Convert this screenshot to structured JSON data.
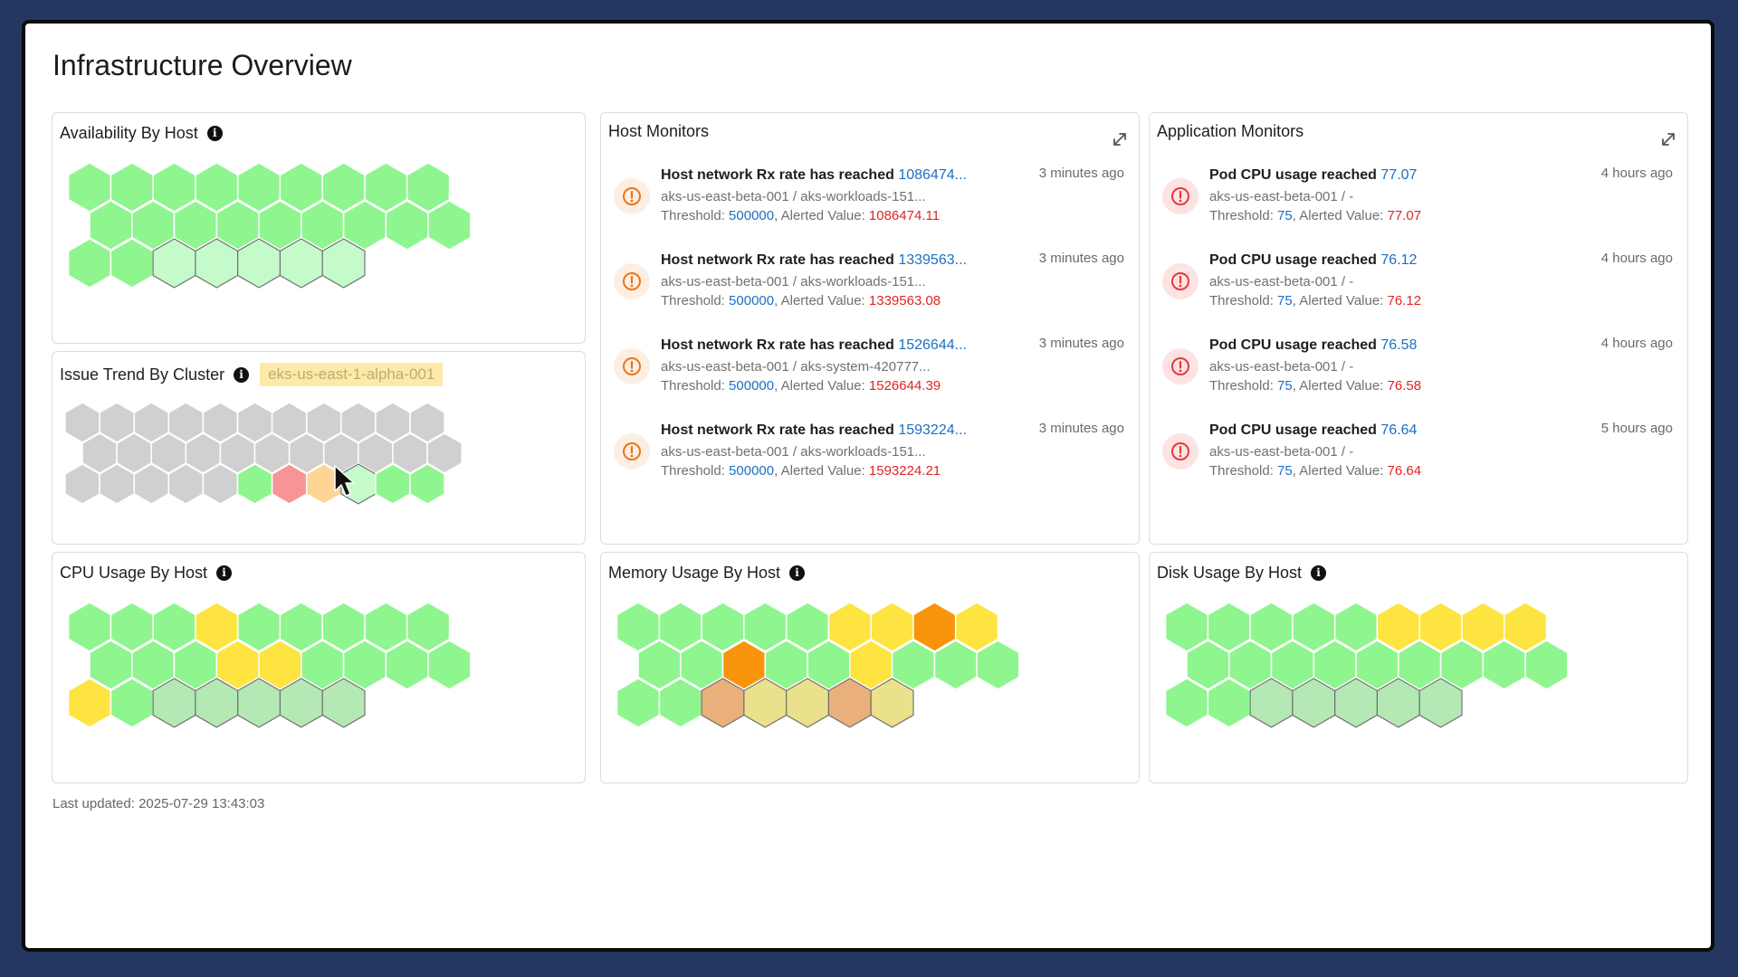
{
  "page": {
    "title": "Infrastructure Overview",
    "last_updated": "Last updated: 2025-07-29 13:43:03"
  },
  "panels": {
    "availability": {
      "title": "Availability By Host"
    },
    "issue_trend": {
      "title": "Issue Trend By Cluster",
      "cluster": "eks-us-east-1-alpha-001"
    },
    "cpu": {
      "title": "CPU Usage By Host"
    },
    "memory": {
      "title": "Memory Usage By Host"
    },
    "disk": {
      "title": "Disk Usage By Host"
    }
  },
  "colors": {
    "green": "#8ff58f",
    "light_green": "#c5facb",
    "gray": "#d0d0d0",
    "red": "#f79596",
    "peach": "#fed595",
    "yellow": "#fde440",
    "orange": "#f9940d",
    "muted_green": "#b4e8b4",
    "muted_orange": "#eab07c",
    "muted_yellow": "#ebe08b"
  },
  "hex_grids": {
    "availability": {
      "rows": [
        [
          "green",
          "green",
          "green",
          "green",
          "green",
          "green",
          "green",
          "green",
          "green"
        ],
        [
          "green",
          "green",
          "green",
          "green",
          "green",
          "green",
          "green",
          "green",
          "green"
        ],
        [
          "green",
          "green",
          "light_green",
          "light_green",
          "light_green",
          "light_green",
          "light_green"
        ]
      ]
    },
    "issue_trend": {
      "rows": [
        [
          "gray",
          "gray",
          "gray",
          "gray",
          "gray",
          "gray",
          "gray",
          "gray",
          "gray",
          "gray",
          "gray"
        ],
        [
          "gray",
          "gray",
          "gray",
          "gray",
          "gray",
          "gray",
          "gray",
          "gray",
          "gray",
          "gray",
          "gray"
        ],
        [
          "gray",
          "gray",
          "gray",
          "gray",
          "gray",
          "green",
          "red",
          "peach",
          "light_green",
          "green",
          "green"
        ]
      ]
    },
    "cpu": {
      "rows": [
        [
          "green",
          "green",
          "green",
          "yellow",
          "green",
          "green",
          "green",
          "green",
          "green"
        ],
        [
          "green",
          "green",
          "green",
          "yellow",
          "yellow",
          "green",
          "green",
          "green",
          "green"
        ],
        [
          "yellow",
          "green",
          "muted_green",
          "muted_green",
          "muted_green",
          "muted_green",
          "muted_green"
        ]
      ]
    },
    "memory": {
      "rows": [
        [
          "green",
          "green",
          "green",
          "green",
          "green",
          "yellow",
          "yellow",
          "orange",
          "yellow"
        ],
        [
          "green",
          "green",
          "orange",
          "green",
          "green",
          "yellow",
          "green",
          "green",
          "green"
        ],
        [
          "green",
          "green",
          "muted_orange",
          "muted_yellow",
          "muted_yellow",
          "muted_orange",
          "muted_yellow"
        ]
      ]
    },
    "disk": {
      "rows": [
        [
          "green",
          "green",
          "green",
          "green",
          "green",
          "yellow",
          "yellow",
          "yellow",
          "yellow"
        ],
        [
          "green",
          "green",
          "green",
          "green",
          "green",
          "green",
          "green",
          "green",
          "green"
        ],
        [
          "green",
          "green",
          "muted_green",
          "muted_green",
          "muted_green",
          "muted_green",
          "muted_green"
        ]
      ]
    }
  },
  "host_monitors": {
    "title": "Host Monitors",
    "items": [
      {
        "title": "Host network Rx rate has reached",
        "value": "1086474...",
        "subtitle": "aks-us-east-beta-001 / aks-workloads-151...",
        "threshold_label": "Threshold:",
        "threshold": "500000",
        "alerted_label": ", Alerted Value:",
        "alerted": "1086474.11",
        "time": "3 minutes ago"
      },
      {
        "title": "Host network Rx rate has reached",
        "value": "1339563...",
        "subtitle": "aks-us-east-beta-001 / aks-workloads-151...",
        "threshold_label": "Threshold:",
        "threshold": "500000",
        "alerted_label": ", Alerted Value:",
        "alerted": "1339563.08",
        "time": "3 minutes ago"
      },
      {
        "title": "Host network Rx rate has reached",
        "value": "1526644...",
        "subtitle": "aks-us-east-beta-001 / aks-system-420777...",
        "threshold_label": "Threshold:",
        "threshold": "500000",
        "alerted_label": ", Alerted Value:",
        "alerted": "1526644.39",
        "time": "3 minutes ago"
      },
      {
        "title": "Host network Rx rate has reached",
        "value": "1593224...",
        "subtitle": "aks-us-east-beta-001 / aks-workloads-151...",
        "threshold_label": "Threshold:",
        "threshold": "500000",
        "alerted_label": ", Alerted Value:",
        "alerted": "1593224.21",
        "time": "3 minutes ago"
      }
    ]
  },
  "app_monitors": {
    "title": "Application Monitors",
    "items": [
      {
        "title": "Pod CPU usage reached",
        "value": "77.07",
        "subtitle": "aks-us-east-beta-001 / -",
        "threshold_label": "Threshold:",
        "threshold": "75",
        "alerted_label": ", Alerted Value:",
        "alerted": "77.07",
        "time": "4 hours ago"
      },
      {
        "title": "Pod CPU usage reached",
        "value": "76.12",
        "subtitle": "aks-us-east-beta-001 / -",
        "threshold_label": "Threshold:",
        "threshold": "75",
        "alerted_label": ", Alerted Value:",
        "alerted": "76.12",
        "time": "4 hours ago"
      },
      {
        "title": "Pod CPU usage reached",
        "value": "76.58",
        "subtitle": "aks-us-east-beta-001 / -",
        "threshold_label": "Threshold:",
        "threshold": "75",
        "alerted_label": ", Alerted Value:",
        "alerted": "76.58",
        "time": "4 hours ago"
      },
      {
        "title": "Pod CPU usage reached",
        "value": "76.64",
        "subtitle": "aks-us-east-beta-001 / -",
        "threshold_label": "Threshold:",
        "threshold": "75",
        "alerted_label": ", Alerted Value:",
        "alerted": "76.64",
        "time": "5 hours ago"
      }
    ]
  },
  "icons": {
    "info": "info-icon",
    "expand": "expand-icon",
    "alert": "alert-circle-icon",
    "cursor": "mouse-pointer-icon"
  }
}
